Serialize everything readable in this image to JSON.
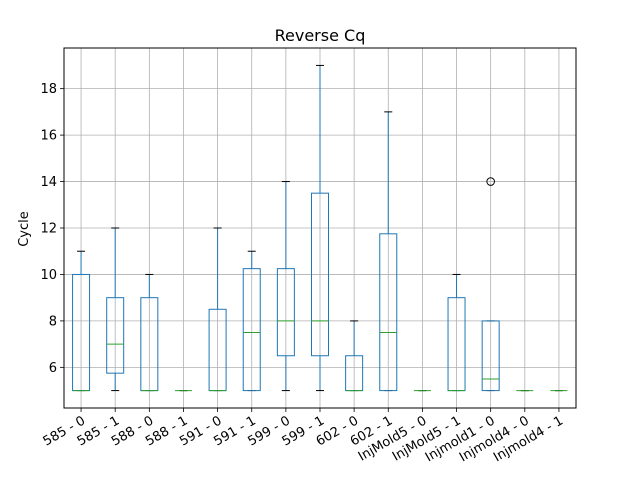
{
  "chart_data": {
    "type": "box",
    "title": "Reverse Cq",
    "xlabel": "",
    "ylabel": "Cycle",
    "ylim": [
      4.25,
      19.75
    ],
    "yticks": [
      6,
      8,
      10,
      12,
      14,
      16,
      18
    ],
    "grid": true,
    "categories": [
      "585 - 0",
      "585 - 1",
      "588 - 0",
      "588 - 1",
      "591 - 0",
      "591 - 1",
      "599 - 0",
      "599 - 1",
      "602 - 0",
      "602 - 1",
      "InjMold5 - 0",
      "InjMold5 - 1",
      "Injmold1 - 0",
      "Injmold4 - 0",
      "Injmold4 - 1"
    ],
    "boxes": [
      {
        "whisker_low": 5,
        "q1": 5,
        "median": 5,
        "q3": 10,
        "whisker_high": 11,
        "outliers": []
      },
      {
        "whisker_low": 5,
        "q1": 5.75,
        "median": 7,
        "q3": 9,
        "whisker_high": 12,
        "outliers": []
      },
      {
        "whisker_low": 5,
        "q1": 5,
        "median": 5,
        "q3": 9,
        "whisker_high": 10,
        "outliers": []
      },
      {
        "whisker_low": 5,
        "q1": 5,
        "median": 5,
        "q3": 5,
        "whisker_high": 5,
        "outliers": []
      },
      {
        "whisker_low": 5,
        "q1": 5,
        "median": 5,
        "q3": 8.5,
        "whisker_high": 12,
        "outliers": []
      },
      {
        "whisker_low": 5,
        "q1": 5,
        "median": 7.5,
        "q3": 10.25,
        "whisker_high": 11,
        "outliers": []
      },
      {
        "whisker_low": 5,
        "q1": 6.5,
        "median": 8,
        "q3": 10.25,
        "whisker_high": 14,
        "outliers": []
      },
      {
        "whisker_low": 5,
        "q1": 6.5,
        "median": 8,
        "q3": 13.5,
        "whisker_high": 19,
        "outliers": []
      },
      {
        "whisker_low": 5,
        "q1": 5,
        "median": 5,
        "q3": 6.5,
        "whisker_high": 8,
        "outliers": []
      },
      {
        "whisker_low": 5,
        "q1": 5,
        "median": 7.5,
        "q3": 11.75,
        "whisker_high": 17,
        "outliers": []
      },
      {
        "whisker_low": 5,
        "q1": 5,
        "median": 5,
        "q3": 5,
        "whisker_high": 5,
        "outliers": []
      },
      {
        "whisker_low": 5,
        "q1": 5,
        "median": 5,
        "q3": 9,
        "whisker_high": 10,
        "outliers": []
      },
      {
        "whisker_low": 5,
        "q1": 5,
        "median": 5.5,
        "q3": 8,
        "whisker_high": 8,
        "outliers": [
          14
        ]
      },
      {
        "whisker_low": 5,
        "q1": 5,
        "median": 5,
        "q3": 5,
        "whisker_high": 5,
        "outliers": []
      },
      {
        "whisker_low": 5,
        "q1": 5,
        "median": 5,
        "q3": 5,
        "whisker_high": 5,
        "outliers": []
      }
    ],
    "colors": {
      "box": "#1f77b4",
      "median": "#2ca02c",
      "grid": "#b0b0b0",
      "axis": "#000000",
      "whisker_cap": "#000000"
    }
  }
}
